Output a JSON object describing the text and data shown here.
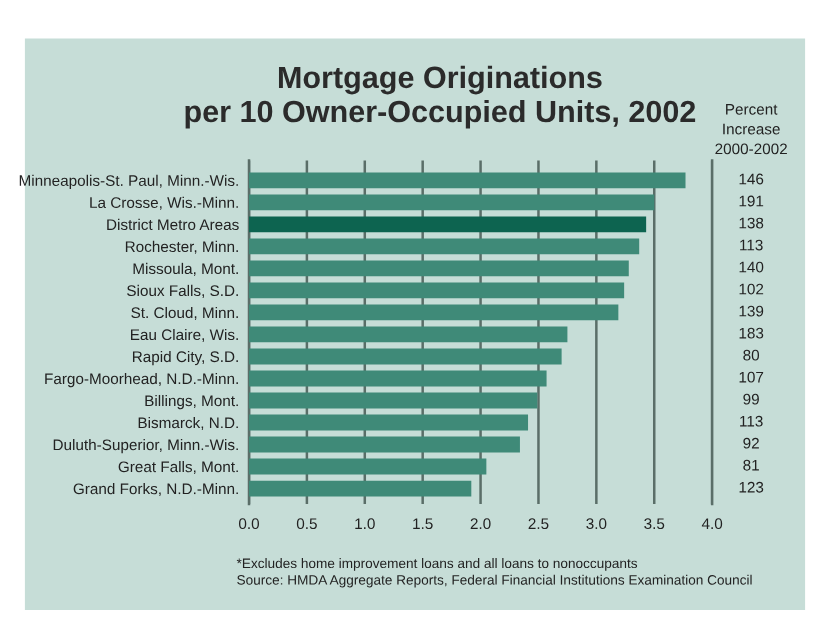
{
  "chart_data": {
    "type": "bar",
    "orientation": "horizontal",
    "title": "Mortgage Originations\nper 10 Owner-Occupied Units, 2002",
    "categories": [
      "Minneapolis-St. Paul, Minn.-Wis.",
      "La Crosse, Wis.-Minn.",
      "District Metro Areas",
      "Rochester, Minn.",
      "Missoula, Mont.",
      "Sioux Falls, S.D.",
      "St. Cloud, Minn.",
      "Eau Claire, Wis.",
      "Rapid City, S.D.",
      "Fargo-Moorhead, N.D.-Minn.",
      "Billings, Mont.",
      "Bismarck, N.D.",
      "Duluth-Superior, Minn.-Wis.",
      "Great Falls, Mont.",
      "Grand Forks, N.D.-Minn."
    ],
    "values": [
      3.77,
      3.5,
      3.43,
      3.37,
      3.28,
      3.24,
      3.19,
      2.75,
      2.7,
      2.57,
      2.49,
      2.41,
      2.34,
      2.05,
      1.92
    ],
    "colors": [
      "#3f8a78",
      "#3f8a78",
      "#0d6450",
      "#3f8a78",
      "#3f8a78",
      "#3f8a78",
      "#3f8a78",
      "#3f8a78",
      "#3f8a78",
      "#3f8a78",
      "#3f8a78",
      "#3f8a78",
      "#3f8a78",
      "#3f8a78",
      "#3f8a78"
    ],
    "xlim": [
      0,
      4.0
    ],
    "xticks": [
      {
        "value": 0,
        "label": "0.0"
      },
      0.5,
      {
        "value": 1,
        "label": "1.0"
      },
      1.5,
      {
        "value": 2,
        "label": "2.0"
      },
      2.5,
      {
        "value": 3,
        "label": "3.0"
      },
      3.5,
      {
        "value": 4,
        "label": "4.0"
      }
    ],
    "grid": "x",
    "annotations": [
      "Percent\nIncrease\n2000-2002",
      "146",
      "191",
      "138",
      "113",
      "140",
      "102",
      "139",
      "183",
      "80",
      "107",
      "99",
      "113",
      "92",
      "81",
      "123",
      "*Excludes home improvement loans and all loans to nonoccupants\nSource: HMDA Aggregate Reports, Federal Financial Institutions Examination Council"
    ]
  }
}
